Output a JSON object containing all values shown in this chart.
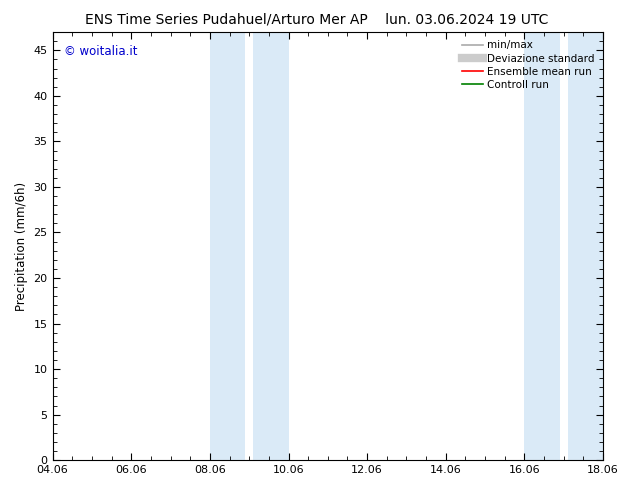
{
  "title_left": "ENS Time Series Pudahuel/Arturo Mer AP",
  "title_right": "lun. 03.06.2024 19 UTC",
  "ylabel": "Precipitation (mm/6h)",
  "xlabel": "",
  "xlim_start": 0.0,
  "xlim_end": 14.0,
  "ylim": [
    0,
    47
  ],
  "yticks": [
    0,
    5,
    10,
    15,
    20,
    25,
    30,
    35,
    40,
    45
  ],
  "xtick_labels": [
    "04.06",
    "06.06",
    "08.06",
    "10.06",
    "12.06",
    "14.06",
    "16.06",
    "18.06"
  ],
  "xtick_positions": [
    0,
    2,
    4,
    6,
    8,
    10,
    12,
    14
  ],
  "shaded_regions": [
    {
      "xmin": 4.0,
      "xmax": 4.9
    },
    {
      "xmin": 5.1,
      "xmax": 6.0
    },
    {
      "xmin": 12.0,
      "xmax": 12.9
    },
    {
      "xmin": 13.1,
      "xmax": 14.0
    }
  ],
  "shaded_color": "#daeaf7",
  "watermark_text": "© woitalia.it",
  "watermark_color": "#0000cc",
  "legend_entries": [
    {
      "label": "min/max",
      "color": "#aaaaaa",
      "lw": 1.2,
      "ls": "-"
    },
    {
      "label": "Deviazione standard",
      "color": "#cccccc",
      "lw": 6,
      "ls": "-"
    },
    {
      "label": "Ensemble mean run",
      "color": "red",
      "lw": 1.2,
      "ls": "-"
    },
    {
      "label": "Controll run",
      "color": "green",
      "lw": 1.2,
      "ls": "-"
    }
  ],
  "bg_color": "#ffffff",
  "title_fontsize": 10,
  "axis_fontsize": 8.5,
  "tick_fontsize": 8,
  "legend_fontsize": 7.5
}
